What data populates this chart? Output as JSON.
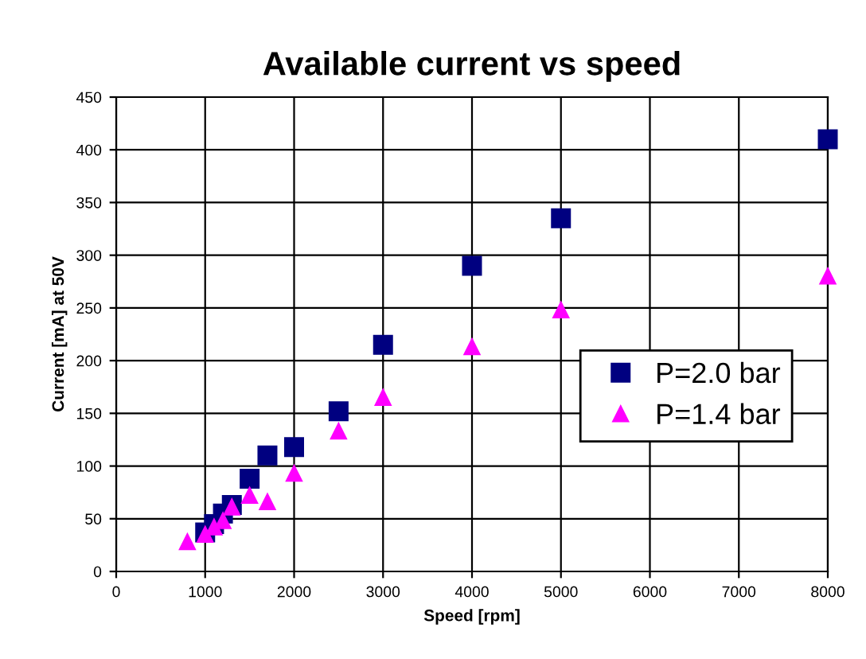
{
  "chart_data": {
    "type": "scatter",
    "title": "Available current vs speed",
    "xlabel": "Speed [rpm]",
    "ylabel": "Current [mA] at 50V",
    "xlim": [
      0,
      8000
    ],
    "xticks": [
      0,
      1000,
      2000,
      3000,
      4000,
      5000,
      6000,
      7000,
      8000
    ],
    "ylim": [
      0,
      450
    ],
    "yticks": [
      0,
      50,
      100,
      150,
      200,
      250,
      300,
      350,
      400,
      450
    ],
    "grid": true,
    "legend": "right",
    "series": [
      {
        "name": "P=2.0 bar",
        "color": "#000080",
        "marker": "square",
        "x": [
          1000,
          1100,
          1200,
          1300,
          1500,
          1700,
          2000,
          2500,
          3000,
          4000,
          5000,
          8000
        ],
        "values": [
          37,
          45,
          55,
          63,
          88,
          110,
          118,
          152,
          215,
          290,
          335,
          410
        ]
      },
      {
        "name": "P=1.4 bar",
        "color": "#ff00ff",
        "marker": "triangle",
        "x": [
          800,
          1000,
          1100,
          1200,
          1300,
          1500,
          1700,
          2000,
          2500,
          3000,
          4000,
          5000,
          8000
        ],
        "values": [
          28,
          35,
          42,
          48,
          61,
          72,
          66,
          93,
          133,
          165,
          213,
          248,
          280
        ]
      }
    ]
  }
}
